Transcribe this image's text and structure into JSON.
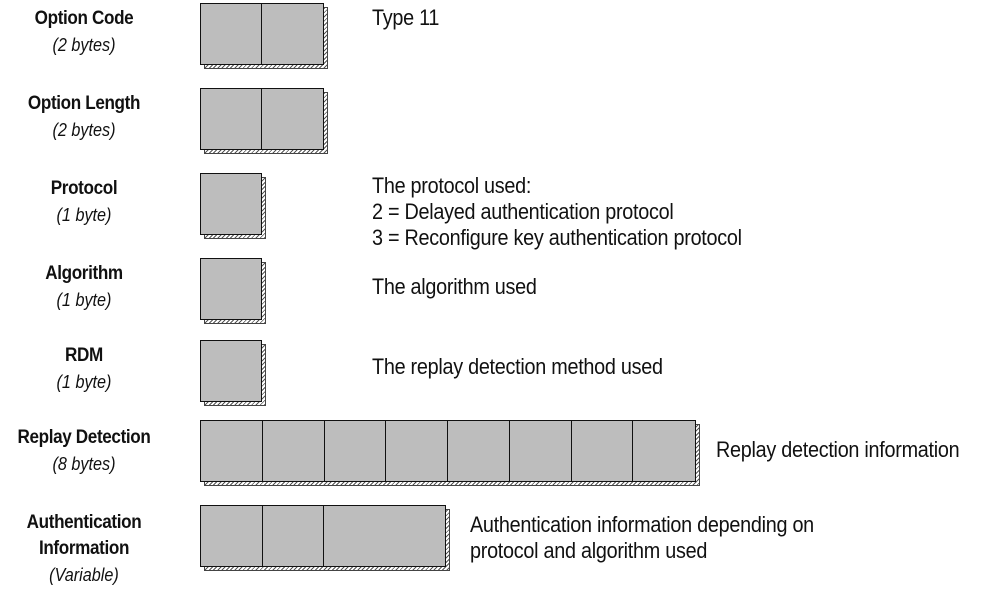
{
  "fields": [
    {
      "id": "option-code",
      "name": "Option Code",
      "size": "(2 bytes)",
      "octets": 2,
      "variable": false,
      "description": [
        "Type 11"
      ]
    },
    {
      "id": "option-length",
      "name": "Option Length",
      "size": "(2 bytes)",
      "octets": 2,
      "variable": false,
      "description": []
    },
    {
      "id": "protocol",
      "name": "Protocol",
      "size": "(1 byte)",
      "octets": 1,
      "variable": false,
      "description": [
        "The protocol used:",
        "2 = Delayed authentication protocol",
        "3 = Reconfigure key authentication protocol"
      ]
    },
    {
      "id": "algorithm",
      "name": "Algorithm",
      "size": "(1 byte)",
      "octets": 1,
      "variable": false,
      "description": [
        "The algorithm used"
      ]
    },
    {
      "id": "rdm",
      "name": "RDM",
      "size": "(1 byte)",
      "octets": 1,
      "variable": false,
      "description": [
        "The replay detection method used"
      ]
    },
    {
      "id": "replay-detection",
      "name": "Replay Detection",
      "size": "(8 bytes)",
      "octets": 8,
      "variable": false,
      "description": [
        "Replay detection information"
      ]
    },
    {
      "id": "authentication-information",
      "name": [
        "Authentication",
        "Information"
      ],
      "size": "(Variable)",
      "octets": 2,
      "variable": true,
      "description": [
        "Authentication information depending on",
        "protocol and algorithm used"
      ]
    }
  ],
  "colors": {
    "cell_fill": "#bdbdbd",
    "outline": "#111111",
    "shadow_hatch": "#555555"
  }
}
